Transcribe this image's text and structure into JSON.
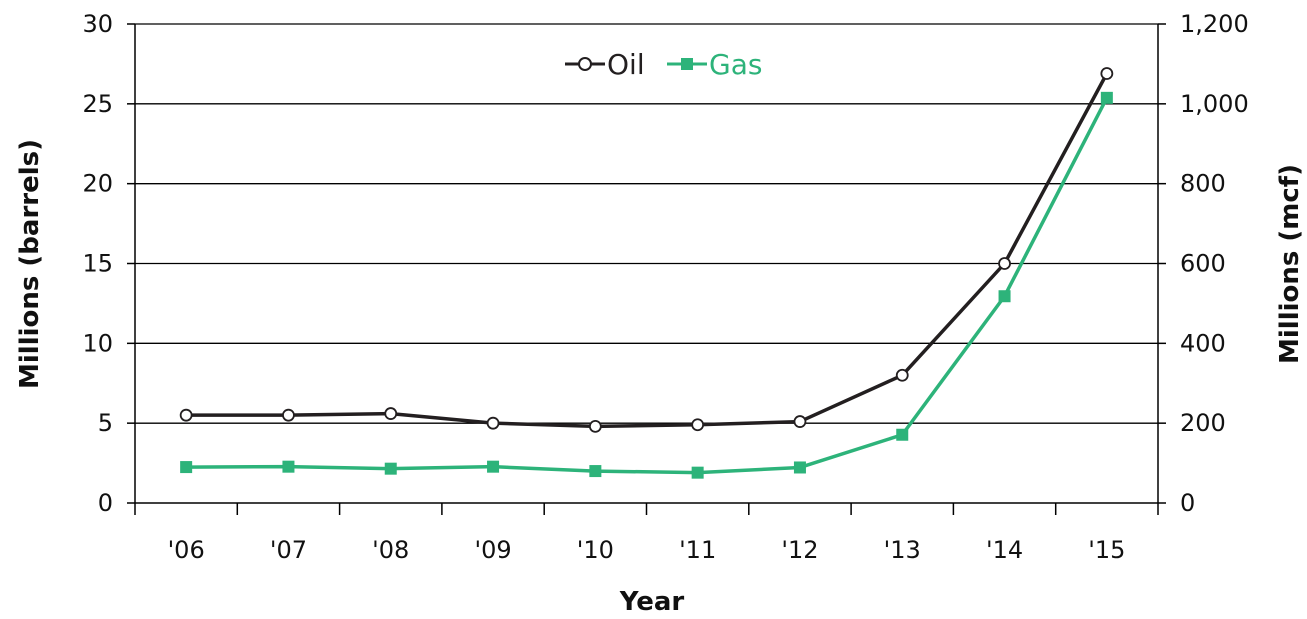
{
  "chart_data": {
    "type": "line",
    "categories": [
      "'06",
      "'07",
      "'08",
      "'09",
      "'10",
      "'11",
      "'12",
      "'13",
      "'14",
      "'15"
    ],
    "series": [
      {
        "name": "Oil",
        "axis": "left",
        "color": "#231f20",
        "marker": "open-circle",
        "values": [
          5.5,
          5.5,
          5.6,
          5.0,
          4.8,
          4.9,
          5.1,
          8.0,
          15.0,
          26.9
        ]
      },
      {
        "name": "Gas",
        "axis": "right",
        "color": "#2db37a",
        "marker": "filled-square",
        "values": [
          90,
          91,
          86,
          91,
          80,
          76,
          89,
          171,
          518,
          1015
        ]
      }
    ],
    "xlabel": "Year",
    "ylabel_left": "Millions (barrels)",
    "ylabel_right": "Millions (mcf)",
    "ylim_left": [
      0,
      30
    ],
    "ylim_right": [
      0,
      1200
    ],
    "yticks_left": [
      "0",
      "5",
      "10",
      "15",
      "20",
      "25",
      "30"
    ],
    "yticks_right": [
      "0",
      "200",
      "400",
      "600",
      "800",
      "1,000",
      "1,200"
    ],
    "grid": "horizontal",
    "legend_position": "top-center"
  }
}
